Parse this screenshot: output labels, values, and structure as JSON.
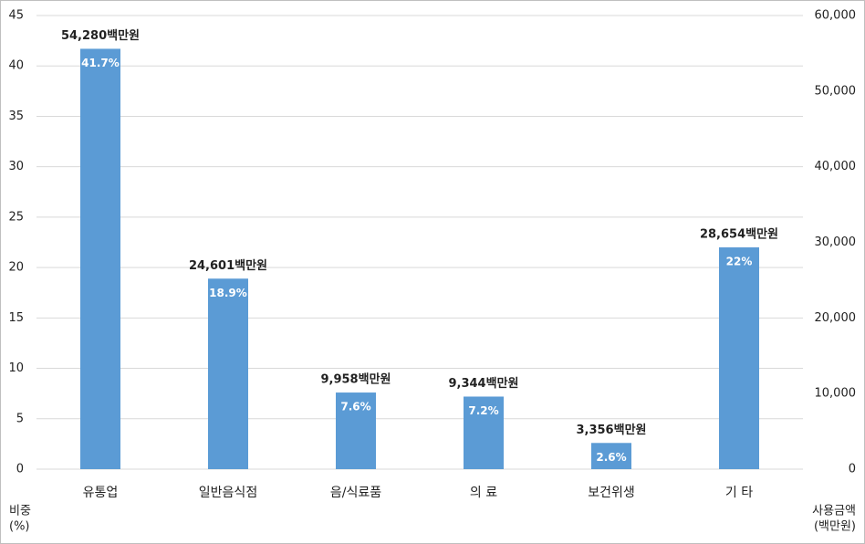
{
  "chart_data": {
    "type": "bar",
    "categories": [
      "유통업",
      "일반음식점",
      "음/식료품",
      "의 료",
      "보건위생",
      "기 타"
    ],
    "series": [
      {
        "name": "비중",
        "color": "#5b9bd5",
        "values": [
          41.7,
          18.9,
          7.6,
          7.2,
          2.6,
          22
        ],
        "value_labels": [
          "41.7%",
          "18.9%",
          "7.6%",
          "7.2%",
          "2.6%",
          "22%"
        ]
      },
      {
        "name": "사용금액",
        "axis": "y2",
        "values": [
          54280,
          24601,
          9958,
          9344,
          3356,
          28654
        ],
        "value_labels": [
          "54,280백만원",
          "24,601백만원",
          "9,958백만원",
          "9,344백만원",
          "3,356백만원",
          "28,654백만원"
        ]
      }
    ],
    "ylim": [
      0,
      45
    ],
    "yticks": [
      0,
      5,
      10,
      15,
      20,
      25,
      30,
      35,
      40,
      45
    ],
    "y2lim": [
      0,
      60000
    ],
    "y2ticks": [
      0,
      {
        "value": 10000,
        "label": "10,000"
      },
      {
        "value": 20000,
        "label": "20,000"
      },
      {
        "value": 30000,
        "label": "30,000"
      },
      {
        "value": 40000,
        "label": "40,000"
      },
      {
        "value": 50000,
        "label": "50,000"
      },
      {
        "value": 60000,
        "label": "60,000"
      }
    ],
    "y_label": [
      "비중",
      "(%)"
    ],
    "y2_label": [
      "사용금액",
      "(백만원)"
    ],
    "grid": true
  }
}
